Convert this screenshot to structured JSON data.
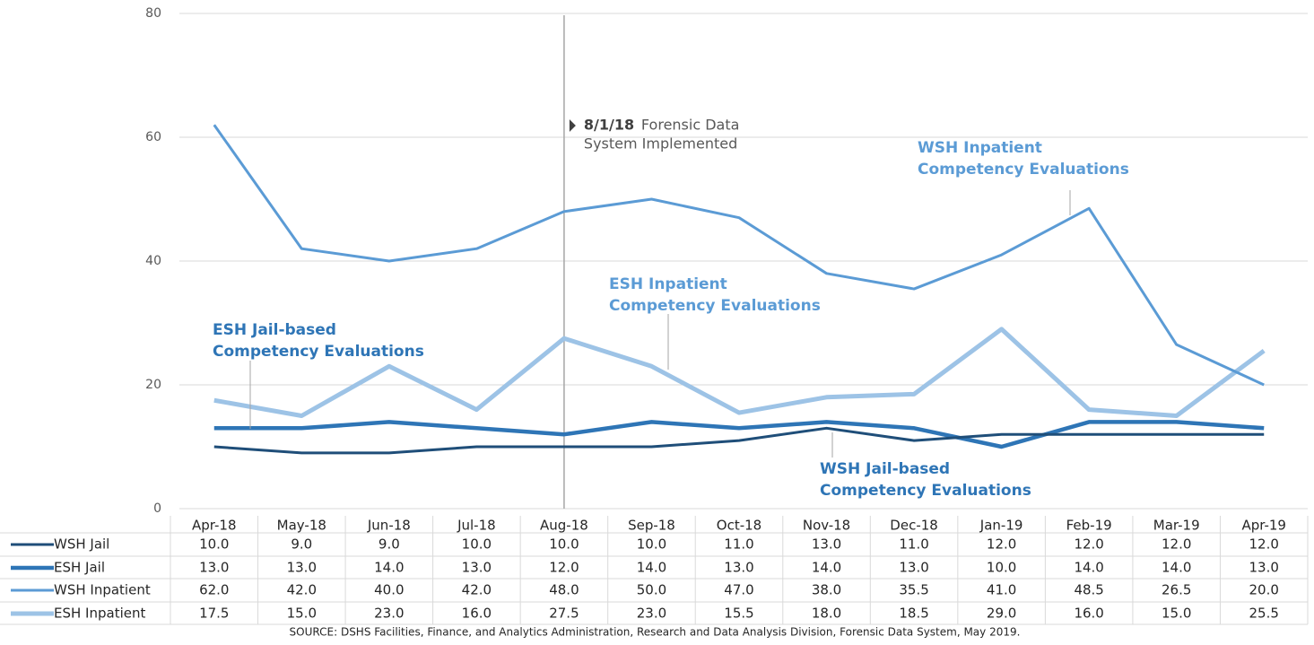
{
  "chart_data": {
    "type": "line",
    "categories": [
      "Apr-18",
      "May-18",
      "Jun-18",
      "Jul-18",
      "Aug-18",
      "Sep-18",
      "Oct-18",
      "Nov-18",
      "Dec-18",
      "Jan-19",
      "Feb-19",
      "Mar-19",
      "Apr-19"
    ],
    "series": [
      {
        "name": "WSH Jail",
        "color": "#1f4e79",
        "width": 3,
        "values": [
          10,
          9,
          9,
          10,
          10,
          10,
          11,
          13,
          11,
          12,
          12,
          12,
          12
        ],
        "value_labels": [
          "10.0",
          "9.0",
          "9.0",
          "10.0",
          "10.0",
          "10.0",
          "11.0",
          "13.0",
          "11.0",
          "12.0",
          "12.0",
          "12.0",
          "12.0"
        ]
      },
      {
        "name": "ESH Jail",
        "color": "#2e75b6",
        "width": 4.5,
        "values": [
          13,
          13,
          14,
          13,
          12,
          14,
          13,
          14,
          13,
          10,
          14,
          14,
          13
        ],
        "value_labels": [
          "13.0",
          "13.0",
          "14.0",
          "13.0",
          "12.0",
          "14.0",
          "13.0",
          "14.0",
          "13.0",
          "10.0",
          "14.0",
          "14.0",
          "13.0"
        ]
      },
      {
        "name": "WSH Inpatient",
        "color": "#5b9bd5",
        "width": 3,
        "values": [
          62,
          42,
          40,
          42,
          48,
          50,
          47,
          38,
          35.5,
          41,
          48.5,
          26.5,
          20
        ],
        "value_labels": [
          "62.0",
          "42.0",
          "40.0",
          "42.0",
          "48.0",
          "50.0",
          "47.0",
          "38.0",
          "35.5",
          "41.0",
          "48.5",
          "26.5",
          "20.0"
        ]
      },
      {
        "name": "ESH Inpatient",
        "color": "#9dc3e6",
        "width": 5,
        "values": [
          17.5,
          15,
          23,
          16,
          27.5,
          23,
          15.5,
          18,
          18.5,
          29,
          16,
          15,
          25.5
        ],
        "value_labels": [
          "17.5",
          "15.0",
          "23.0",
          "16.0",
          "27.5",
          "23.0",
          "15.5",
          "18.0",
          "18.5",
          "29.0",
          "16.0",
          "15.0",
          "25.5"
        ]
      }
    ],
    "ylim": [
      0,
      80
    ],
    "yticks": [
      0,
      20,
      40,
      60,
      80
    ],
    "grid": true,
    "event": {
      "date": "8/1/18",
      "lines": [
        "Forensic Data",
        "System Implemented"
      ]
    },
    "annotations": [
      {
        "lines": [
          "WSH Inpatient",
          "Competency Evaluations"
        ],
        "color": "#5b9bd5"
      },
      {
        "lines": [
          "ESH Inpatient",
          "Competency Evaluations"
        ],
        "color": "#5b9bd5"
      },
      {
        "lines": [
          "ESH Jail-based",
          "Competency Evaluations"
        ],
        "color": "#2e75b6"
      },
      {
        "lines": [
          "WSH Jail-based",
          "Competency Evaluations"
        ],
        "color": "#2e75b6"
      }
    ],
    "source": "SOURCE: DSHS Facilities, Finance, and Analytics Administration, Research and Data Analysis Division, Forensic Data System, May 2019."
  }
}
